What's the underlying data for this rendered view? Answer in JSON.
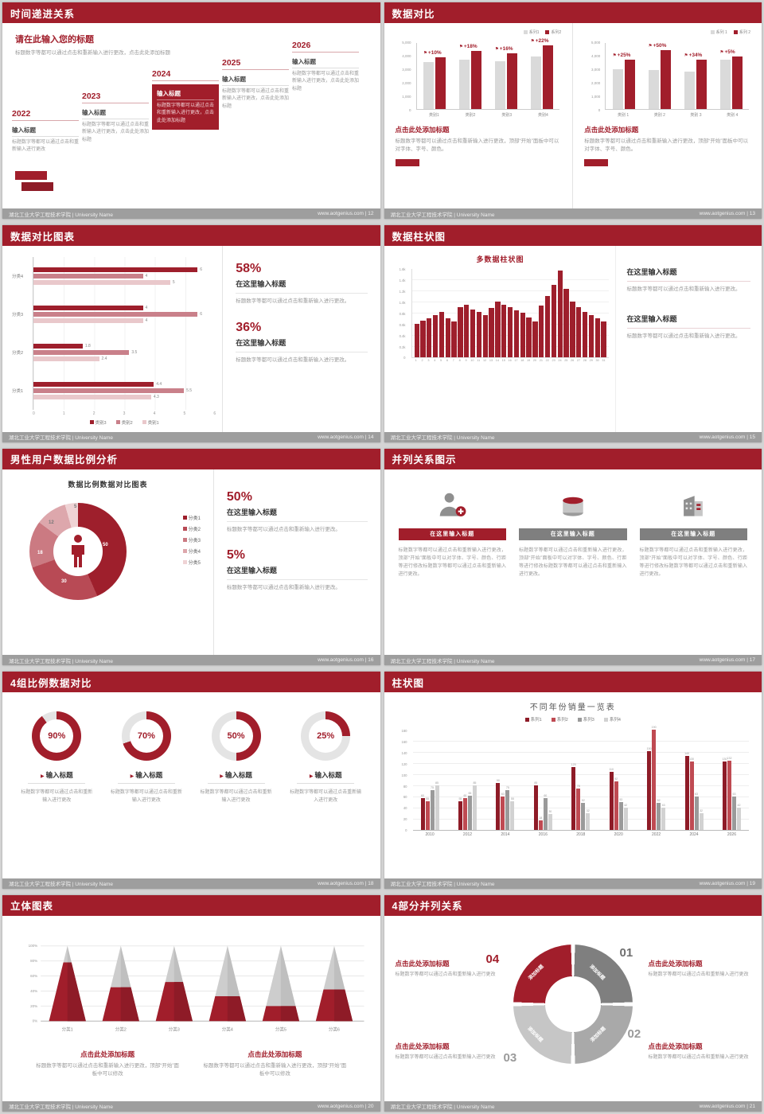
{
  "theme": {
    "primary": "#a11e2b",
    "dark_red": "#8e1b27",
    "mid_red": "#c9808a",
    "light_red": "#e9c8cb",
    "gray_dark": "#7f7f7f",
    "gray_mid": "#a9a9a9",
    "gray_light": "#dadada"
  },
  "footer": {
    "org": "湖北工业大学工程技术学院 | University Name",
    "site": "www.aotgenius.com",
    "sep": " | "
  },
  "slides": {
    "timeline": {
      "title": "时间递进关系",
      "page": "12",
      "heading": "请在此输入您的标题",
      "subheading": "标题数字等都可以通过点击和重新输入进行更改，点击此处添加标题",
      "steps": [
        {
          "year": "2022",
          "label": "输入标题",
          "text": "标题数字等都可以通过点击和重新输入进行更改",
          "highlight": false
        },
        {
          "year": "2023",
          "label": "输入标题",
          "text": "标题数字等都可以通过点击和重新输入进行更改，点击此处添加标题",
          "highlight": false
        },
        {
          "year": "2024",
          "label": "输入标题",
          "text": "标题数字等都可以通过点击和重新输入进行更改，点击此处添加标题",
          "highlight": true
        },
        {
          "year": "2025",
          "label": "输入标题",
          "text": "标题数字等都可以通过点击和重新输入进行更改，点击此处添加标题",
          "highlight": false
        },
        {
          "year": "2026",
          "label": "输入标题",
          "text": "标题数字等都可以通过点击和重新输入进行更改，点击此处添加标题",
          "highlight": false
        }
      ]
    },
    "compare": {
      "title": "数据对比",
      "page": "13",
      "chart_data": [
        {
          "type": "bar",
          "legend": [
            "系列1",
            "系列2"
          ],
          "categories": [
            "类别1",
            "类别2",
            "类别3",
            "类别4"
          ],
          "series": [
            {
              "name": "系列1",
              "values": [
                3500,
                3700,
                3600,
                3900
              ]
            },
            {
              "name": "系列2",
              "values": [
                3850,
                4350,
                4150,
                4750
              ]
            }
          ],
          "labels": [
            "+10%",
            "+18%",
            "+16%",
            "+22%"
          ],
          "ymax": 5000,
          "yticks": [
            "5,000",
            "4,000",
            "3,000",
            "2,000",
            "1,000",
            "0"
          ]
        },
        {
          "type": "bar",
          "legend": [
            "系列 1",
            "系列 2"
          ],
          "categories": [
            "类别 1",
            "类别 2",
            "类别 3",
            "类别 4"
          ],
          "series": [
            {
              "name": "系列 1",
              "values": [
                3000,
                2900,
                2800,
                3700
              ]
            },
            {
              "name": "系列 2",
              "values": [
                3700,
                4400,
                3700,
                3900
              ]
            }
          ],
          "labels": [
            "+25%",
            "+50%",
            "+34%",
            "+5%"
          ],
          "ymax": 5000,
          "yticks": [
            "5,000",
            "4,000",
            "3,000",
            "2,000",
            "1,000",
            "0"
          ]
        }
      ],
      "blocks": [
        {
          "heading": "点击此处添加标题",
          "text": "标题数字等都可以通过点击和重新输入进行更改，顶部“开始”面板中可以对字体、字号、颜色。"
        },
        {
          "heading": "点击此处添加标题",
          "text": "标题数字等都可以通过点击和重新输入进行更改，顶部“开始”面板中可以对字体、字号、颜色。"
        }
      ]
    },
    "hbar": {
      "title": "数据对比图表",
      "page": "14",
      "chart_data": {
        "type": "bar",
        "orientation": "horizontal",
        "groups": [
          "分类4",
          "分类3",
          "分类2",
          "分类1"
        ],
        "series": [
          [
            6,
            4,
            5
          ],
          [
            4,
            6,
            4
          ],
          [
            1.8,
            3.5,
            2.4
          ],
          [
            4.4,
            5.5,
            4.3
          ]
        ],
        "xmax": 6,
        "xticks": [
          "0",
          "1",
          "2",
          "3",
          "4",
          "5",
          "6"
        ],
        "legend": [
          "类别3",
          "类别2",
          "类别1"
        ]
      },
      "stats": [
        {
          "pct": "58%",
          "heading": "在这里输入标题",
          "text": "标题数字等都可以通过点击和重新输入进行更改。"
        },
        {
          "pct": "36%",
          "heading": "在这里输入标题",
          "text": "标题数字等都可以通过点击和重新输入进行更改。"
        }
      ]
    },
    "colchart": {
      "title": "数据柱状图",
      "page": "15",
      "chart_data": {
        "type": "bar",
        "title": "多数据柱状图",
        "values": [
          610,
          660,
          700,
          760,
          820,
          700,
          650,
          900,
          950,
          860,
          820,
          760,
          890,
          1000,
          950,
          900,
          850,
          800,
          720,
          650,
          930,
          1100,
          1310,
          1560,
          1230,
          1010,
          910,
          820,
          760,
          700,
          650
        ],
        "xlabels": [
          "1",
          "2",
          "3",
          "4",
          "5",
          "6",
          "7",
          "8",
          "9",
          "10",
          "11",
          "12",
          "13",
          "14",
          "15",
          "16",
          "17",
          "18",
          "19",
          "20",
          "21",
          "22",
          "23",
          "24",
          "25",
          "26",
          "27",
          "28",
          "29",
          "30",
          "31"
        ],
        "yticks": [
          "1.6k",
          "1.4k",
          "1.2k",
          "1.0k",
          "0.8k",
          "0.6k",
          "0.4k",
          "0.2k",
          "0"
        ],
        "ymax": 1600
      },
      "blocks": [
        {
          "heading": "在这里输入标题",
          "text": "标题数字等都可以通过点击和重新输入进行更改。"
        },
        {
          "heading": "在这里输入标题",
          "text": "标题数字等都可以通过点击和重新输入进行更改。"
        }
      ]
    },
    "donut": {
      "title": "男性用户数据比例分析",
      "page": "16",
      "chart_title": "数据比例数据对比图表",
      "chart_data": {
        "type": "pie",
        "values": [
          50,
          30,
          18,
          12,
          5
        ],
        "labels": [
          "50",
          "30",
          "18",
          "12",
          "5"
        ],
        "legend": [
          "分类1",
          "分类2",
          "分类3",
          "分类4",
          "分类5"
        ]
      },
      "colors": [
        "#9e1f2c",
        "#b84a55",
        "#cb7a82",
        "#dda7ac",
        "#efd3d5"
      ],
      "stats": [
        {
          "pct": "50%",
          "heading": "在这里输入标题",
          "text": "标题数字等都可以通过点击和重新输入进行更改。"
        },
        {
          "pct": "5%",
          "heading": "在这里输入标题",
          "text": "标题数字等都可以通过点击和重新输入进行更改。"
        }
      ]
    },
    "parallel": {
      "title": "并列关系图示",
      "page": "17",
      "items": [
        {
          "icon": "person-plus",
          "heading": "在这里输入标题",
          "bar_color": "#a11e2b",
          "text": "标题数字等都可以通过点击和重新输入进行更改，顶部“开始”面板中可以对字体、字号、颜色、行距等进行修改标题数字等都可以通过点击和重新输入进行更改。"
        },
        {
          "icon": "database",
          "heading": "在这里输入标题",
          "bar_color": "#7f7f7f",
          "text": "标题数字等都可以通过点击和重新输入进行更改，顶部“开始”面板中可以对字体、字号、颜色、行距等进行修改标题数字等都可以通过点击和重新输入进行更改。"
        },
        {
          "icon": "building",
          "heading": "在这里输入标题",
          "bar_color": "#7f7f7f",
          "text": "标题数字等都可以通过点击和重新输入进行更改，顶部“开始”面板中可以对字体、字号、颜色、行距等进行修改标题数字等都可以通过点击和重新输入进行更改。"
        }
      ]
    },
    "rings": {
      "title": "4组比例数据对比",
      "page": "18",
      "chart_data": {
        "type": "pie",
        "values": [
          90,
          70,
          50,
          25
        ]
      },
      "items": [
        {
          "pct": 90,
          "pct_label": "90%",
          "heading": "输入标题",
          "text": "标题数字等都可以通过点击和重新输入进行更改"
        },
        {
          "pct": 70,
          "pct_label": "70%",
          "heading": "输入标题",
          "text": "标题数字等都可以通过点击和重新输入进行更改"
        },
        {
          "pct": 50,
          "pct_label": "50%",
          "heading": "输入标题",
          "text": "标题数字等都可以通过点击和重新输入进行更改"
        },
        {
          "pct": 25,
          "pct_label": "25%",
          "heading": "输入标题",
          "text": "标题数字等都可以通过点击重新输入进行更改"
        }
      ]
    },
    "grouped": {
      "title": "柱状图",
      "page": "19",
      "chart_data": {
        "type": "bar",
        "title": "不同年份销量一览表",
        "categories": [
          "2010",
          "2012",
          "2014",
          "2016",
          "2018",
          "2020",
          "2022",
          "2024",
          "2026"
        ],
        "series": [
          {
            "name": "系列1",
            "values": [
              60,
              55,
              90,
              85,
              120,
              110,
              150,
              140,
              130
            ]
          },
          {
            "name": "系列2",
            "values": [
              55,
              60,
              63,
              18,
              78,
              92,
              190,
              130,
              132
            ]
          },
          {
            "name": "系列3",
            "values": [
              75,
              65,
              75,
              60,
              52,
              53,
              52,
              63,
              63
            ]
          },
          {
            "name": "系列4",
            "values": [
              85,
              85,
              55,
              30,
              32,
              42,
              43,
              32,
              42
            ]
          }
        ],
        "colors": [
          "#8e1b27",
          "#bf4a52",
          "#9a9a9a",
          "#d2d2d2"
        ],
        "yticks": [
          "180",
          "160",
          "140",
          "120",
          "100",
          "80",
          "60",
          "40",
          "20",
          "0"
        ],
        "ymax": 190
      }
    },
    "cones": {
      "title": "立体图表",
      "page": "20",
      "chart_data": {
        "type": "bar",
        "style": "3d-cone",
        "categories": [
          "分类1",
          "分类2",
          "分类3",
          "分类4",
          "分类5",
          "分类6"
        ],
        "fill": [
          0.78,
          0.45,
          0.52,
          0.33,
          0.2,
          0.42
        ],
        "yticks": [
          "100%",
          "80%",
          "60%",
          "40%",
          "20%",
          "0%"
        ]
      },
      "blocks": [
        {
          "heading": "点击此处添加标题",
          "text": "标题数字等都可以通过点击和重新输入进行更改，顶部“开始”面板中可以修改"
        },
        {
          "heading": "点击此处添加标题",
          "text": "标题数字等都可以通过点击和重新输入进行更改，顶部“开始”面板中可以修改"
        }
      ]
    },
    "quad": {
      "title": "4部分并列关系",
      "page": "21",
      "segments": [
        {
          "num": "01",
          "label": "添加标题",
          "color": "#7f7f7f"
        },
        {
          "num": "02",
          "label": "添加标题",
          "color": "#a9a9a9"
        },
        {
          "num": "03",
          "label": "添加标题",
          "color": "#c6c6c6"
        },
        {
          "num": "04",
          "label": "添加标题",
          "color": "#a11e2b"
        }
      ],
      "blocks": [
        {
          "heading": "点击此处添加标题",
          "text": "标题数字等都可以通过点击和重新输入进行更改"
        },
        {
          "heading": "点击此处添加标题",
          "text": "标题数字等都可以通过点击和重新输入进行更改"
        },
        {
          "heading": "点击此处添加标题",
          "text": "标题数字等都可以通过点击和重新输入进行更改"
        },
        {
          "heading": "点击此处添加标题",
          "text": "标题数字等都可以通过点击和重新输入进行更改"
        }
      ]
    }
  }
}
